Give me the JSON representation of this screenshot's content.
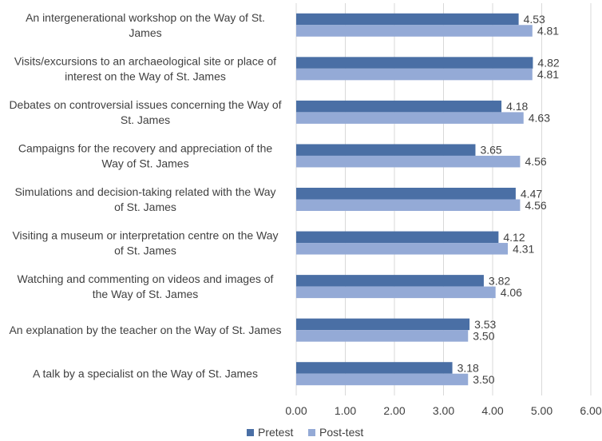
{
  "chart_data": {
    "type": "bar",
    "orientation": "horizontal",
    "categories": [
      [
        "An intergenerational workshop on the Way of St.",
        "James"
      ],
      [
        "Visits/excursions to an archaeological site or place of",
        "interest on the Way of St. James"
      ],
      [
        "Debates on controversial issues concerning the Way of",
        "St. James"
      ],
      [
        "Campaigns for the recovery and appreciation of the",
        "Way of St. James"
      ],
      [
        "Simulations and decision-taking related with the Way",
        "of St. James"
      ],
      [
        "Visiting a museum or interpretation centre on the Way",
        "of St. James"
      ],
      [
        "Watching and commenting on videos and images of",
        "the Way of St. James"
      ],
      [
        "An explanation by the teacher on the Way of St. James"
      ],
      [
        "A talk by a specialist on the Way of St. James"
      ]
    ],
    "series": [
      {
        "name": "Pretest",
        "color": "#4a6fa5",
        "values": [
          4.53,
          4.82,
          4.18,
          3.65,
          4.47,
          4.12,
          3.82,
          3.53,
          3.18
        ],
        "labels": [
          "4.53",
          "4.82",
          "4.18",
          "3.65",
          "4.47",
          "4.12",
          "3.82",
          "3.53",
          "3.18"
        ]
      },
      {
        "name": "Post-test",
        "color": "#94aad6",
        "values": [
          4.81,
          4.81,
          4.63,
          4.56,
          4.56,
          4.31,
          4.06,
          3.5,
          3.5
        ],
        "labels": [
          "4.81",
          "4.81",
          "4.63",
          "4.56",
          "4.56",
          "4.31",
          "4.06",
          "3.50",
          "3.50"
        ]
      }
    ],
    "xlim": [
      0,
      6
    ],
    "xticks": [
      0,
      1,
      2,
      3,
      4,
      5,
      6
    ],
    "xtick_labels": [
      "0.00",
      "1.00",
      "2.00",
      "3.00",
      "4.00",
      "5.00",
      "6.00"
    ],
    "grid": "vertical",
    "legend_position": "bottom",
    "gridline_color": "#d9d9d9"
  }
}
